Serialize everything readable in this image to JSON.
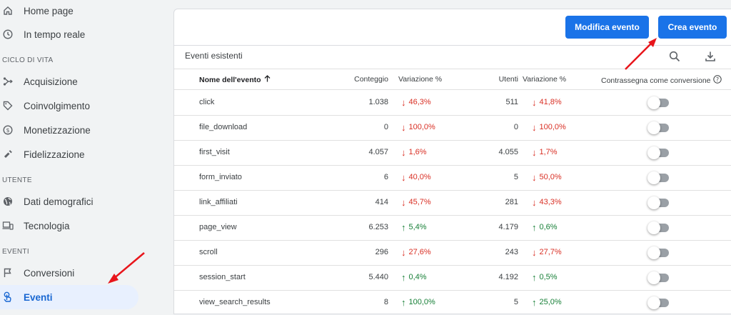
{
  "sidebar": {
    "top_items": [
      {
        "label": "Home page",
        "icon": "home-icon"
      },
      {
        "label": "In tempo reale",
        "icon": "clock-icon"
      }
    ],
    "sections": [
      {
        "title": "CICLO DI VITA",
        "items": [
          {
            "label": "Acquisizione",
            "icon": "acquisition-icon"
          },
          {
            "label": "Coinvolgimento",
            "icon": "tag-icon"
          },
          {
            "label": "Monetizzazione",
            "icon": "dollar-icon"
          },
          {
            "label": "Fidelizzazione",
            "icon": "magnet-icon"
          }
        ]
      },
      {
        "title": "UTENTE",
        "items": [
          {
            "label": "Dati demografici",
            "icon": "globe-icon"
          },
          {
            "label": "Tecnologia",
            "icon": "devices-icon"
          }
        ]
      },
      {
        "title": "EVENTI",
        "items": [
          {
            "label": "Conversioni",
            "icon": "flag-icon"
          },
          {
            "label": "Eventi",
            "icon": "touch-icon",
            "active": true
          }
        ]
      }
    ]
  },
  "toolbar": {
    "edit_label": "Modifica evento",
    "create_label": "Crea evento"
  },
  "card": {
    "title": "Eventi esistenti"
  },
  "table": {
    "headers": {
      "name": "Nome dell'evento",
      "count": "Conteggio",
      "count_change": "Variazione %",
      "users": "Utenti",
      "users_change": "Variazione %",
      "conversion": "Contrassegna come conversione"
    },
    "rows": [
      {
        "name": "click",
        "count": "1.038",
        "count_dir": "down",
        "count_change": "46,3%",
        "users": "511",
        "users_dir": "down",
        "users_change": "41,8%"
      },
      {
        "name": "file_download",
        "count": "0",
        "count_dir": "down",
        "count_change": "100,0%",
        "users": "0",
        "users_dir": "down",
        "users_change": "100,0%"
      },
      {
        "name": "first_visit",
        "count": "4.057",
        "count_dir": "down",
        "count_change": "1,6%",
        "users": "4.055",
        "users_dir": "down",
        "users_change": "1,7%"
      },
      {
        "name": "form_inviato",
        "count": "6",
        "count_dir": "down",
        "count_change": "40,0%",
        "users": "5",
        "users_dir": "down",
        "users_change": "50,0%"
      },
      {
        "name": "link_affiliati",
        "count": "414",
        "count_dir": "down",
        "count_change": "45,7%",
        "users": "281",
        "users_dir": "down",
        "users_change": "43,3%"
      },
      {
        "name": "page_view",
        "count": "6.253",
        "count_dir": "up",
        "count_change": "5,4%",
        "users": "4.179",
        "users_dir": "up",
        "users_change": "0,6%"
      },
      {
        "name": "scroll",
        "count": "296",
        "count_dir": "down",
        "count_change": "27,6%",
        "users": "243",
        "users_dir": "down",
        "users_change": "27,7%"
      },
      {
        "name": "session_start",
        "count": "5.440",
        "count_dir": "up",
        "count_change": "0,4%",
        "users": "4.192",
        "users_dir": "up",
        "users_change": "0,5%"
      },
      {
        "name": "view_search_results",
        "count": "8",
        "count_dir": "up",
        "count_change": "100,0%",
        "users": "5",
        "users_dir": "up",
        "users_change": "25,0%"
      }
    ]
  },
  "colors": {
    "accent": "#1a73e8",
    "down": "#d93025",
    "up": "#188038",
    "annotation": "#e8151b"
  }
}
